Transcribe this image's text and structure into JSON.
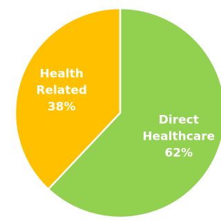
{
  "chart_data": {
    "type": "pie",
    "start_angle_deg": 0,
    "direction": "clockwise",
    "slices": [
      {
        "label_lines": [
          "Direct",
          "Healthcare"
        ],
        "value": 62,
        "display_value": "62%",
        "color": "#92D050"
      },
      {
        "label_lines": [
          "Health",
          "Related"
        ],
        "value": 38,
        "display_value": "38%",
        "color": "#FFC000"
      }
    ],
    "slice_border_color": "#ffffff",
    "legend": "none"
  }
}
